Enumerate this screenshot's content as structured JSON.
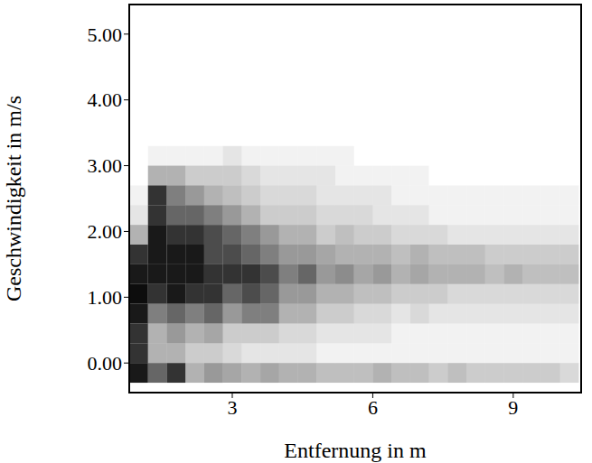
{
  "chart_data": {
    "type": "heatmap",
    "x_label": "Entfernung in m",
    "y_label": "Geschwindigkeit in m/s",
    "xlim": [
      0.8,
      10.45
    ],
    "xticks": [
      3,
      6,
      9
    ],
    "ylim": [
      -0.45,
      5.45
    ],
    "yticks": [
      {
        "value": 0,
        "label": "0.00"
      },
      {
        "value": 1,
        "label": "1.00"
      },
      {
        "value": 2,
        "label": "2.00"
      },
      {
        "value": 3,
        "label": "3.00"
      },
      {
        "value": 4,
        "label": "4.00"
      },
      {
        "value": 5,
        "label": "5.00"
      }
    ],
    "color": "#000000",
    "grid": false,
    "x_bins": [
      0.8,
      1.2,
      1.6,
      2.0,
      2.4,
      2.8,
      3.2,
      3.6,
      4.0,
      4.4,
      4.8,
      5.2,
      5.6,
      6.0,
      6.4,
      6.8,
      7.2,
      7.6,
      8.0,
      8.4,
      8.8,
      9.2,
      9.6,
      10.0,
      10.4
    ],
    "y_bins": [
      -0.3,
      0.0,
      0.3,
      0.6,
      0.9,
      1.2,
      1.5,
      1.8,
      2.1,
      2.4,
      2.7,
      3.0,
      3.3
    ],
    "cells": [
      [
        0.9,
        0.6,
        0.8,
        0.3,
        0.4,
        0.35,
        0.3,
        0.35,
        0.3,
        0.3,
        0.25,
        0.25,
        0.25,
        0.3,
        0.25,
        0.25,
        0.2,
        0.25,
        0.2,
        0.2,
        0.2,
        0.2,
        0.2,
        0.15
      ],
      [
        0.8,
        0.3,
        0.3,
        0.2,
        0.2,
        0.15,
        0.1,
        0.1,
        0.1,
        0.1,
        0.05,
        0.05,
        0.05,
        0.05,
        0.05,
        0.05,
        0.05,
        0.05,
        0.05,
        0.05,
        0.05,
        0.05,
        0.05,
        0.05
      ],
      [
        0.8,
        0.3,
        0.4,
        0.3,
        0.35,
        0.2,
        0.2,
        0.2,
        0.15,
        0.15,
        0.1,
        0.1,
        0.1,
        0.1,
        0.05,
        0.05,
        0.05,
        0.05,
        0.05,
        0.05,
        0.05,
        0.05,
        0.05,
        0.05
      ],
      [
        0.9,
        0.5,
        0.6,
        0.5,
        0.6,
        0.4,
        0.5,
        0.5,
        0.3,
        0.3,
        0.2,
        0.2,
        0.15,
        0.15,
        0.1,
        0.15,
        0.1,
        0.1,
        0.1,
        0.1,
        0.1,
        0.1,
        0.1,
        0.1
      ],
      [
        0.95,
        0.8,
        0.9,
        0.8,
        0.8,
        0.6,
        0.7,
        0.6,
        0.4,
        0.4,
        0.3,
        0.3,
        0.25,
        0.25,
        0.2,
        0.2,
        0.2,
        0.15,
        0.15,
        0.15,
        0.15,
        0.15,
        0.15,
        0.15
      ],
      [
        0.9,
        0.9,
        0.9,
        0.9,
        0.8,
        0.8,
        0.8,
        0.7,
        0.5,
        0.6,
        0.4,
        0.45,
        0.35,
        0.4,
        0.3,
        0.35,
        0.3,
        0.3,
        0.3,
        0.25,
        0.3,
        0.25,
        0.25,
        0.25
      ],
      [
        0.8,
        0.9,
        0.9,
        0.9,
        0.7,
        0.7,
        0.6,
        0.5,
        0.4,
        0.4,
        0.35,
        0.3,
        0.3,
        0.3,
        0.25,
        0.3,
        0.25,
        0.25,
        0.25,
        0.2,
        0.2,
        0.2,
        0.2,
        0.2
      ],
      [
        0.3,
        0.9,
        0.8,
        0.8,
        0.7,
        0.6,
        0.5,
        0.4,
        0.3,
        0.3,
        0.2,
        0.25,
        0.2,
        0.2,
        0.15,
        0.15,
        0.15,
        0.1,
        0.1,
        0.1,
        0.1,
        0.1,
        0.1,
        0.1
      ],
      [
        0.1,
        0.8,
        0.6,
        0.6,
        0.5,
        0.4,
        0.3,
        0.2,
        0.2,
        0.2,
        0.15,
        0.15,
        0.15,
        0.1,
        0.1,
        0.1,
        0.05,
        0.05,
        0.05,
        0.05,
        0.05,
        0.05,
        0.05,
        0.05
      ],
      [
        0.05,
        0.8,
        0.5,
        0.4,
        0.3,
        0.25,
        0.2,
        0.15,
        0.15,
        0.15,
        0.1,
        0.1,
        0.1,
        0.1,
        0.05,
        0.05,
        0.05,
        0.05,
        0.05,
        0.05,
        0.05,
        0.05,
        0.05,
        0.05
      ],
      [
        0,
        0.3,
        0.3,
        0.2,
        0.2,
        0.2,
        0.15,
        0.1,
        0.1,
        0.1,
        0.1,
        0.05,
        0.05,
        0.05,
        0.05,
        0.05,
        0,
        0,
        0,
        0,
        0,
        0,
        0,
        0
      ],
      [
        0,
        0.05,
        0.05,
        0.05,
        0.05,
        0.1,
        0.05,
        0.05,
        0.05,
        0.05,
        0.05,
        0.05,
        0,
        0,
        0,
        0,
        0,
        0,
        0,
        0,
        0,
        0,
        0,
        0
      ]
    ]
  }
}
